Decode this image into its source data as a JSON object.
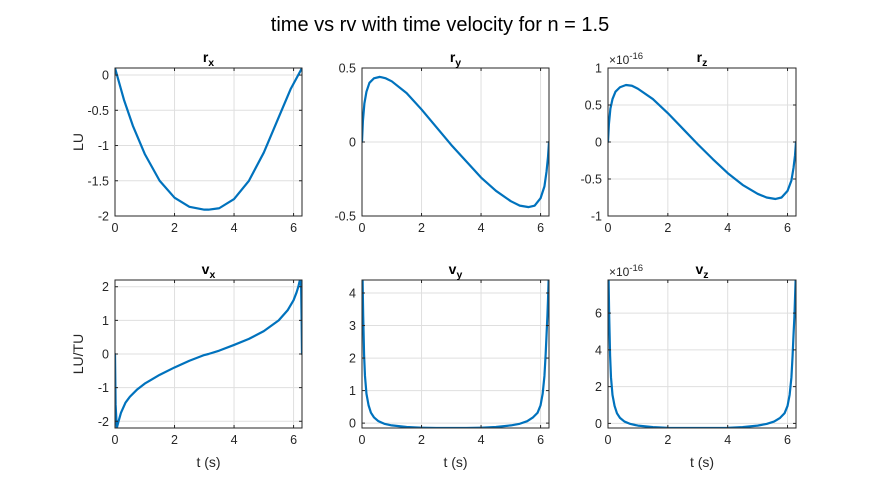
{
  "figure": {
    "title": "time vs rv with time velocity for n = 1.5"
  },
  "chart_data": [
    {
      "type": "line",
      "title": "r",
      "title_sub": "x",
      "ylabel": "LU",
      "xlabel": "",
      "xlim": [
        0,
        6.2832
      ],
      "ylim": [
        -2,
        0.1
      ],
      "xticks": [
        0,
        2,
        4,
        6
      ],
      "xtick_labels": [
        "0",
        "2",
        "4",
        "6"
      ],
      "yticks": [
        0,
        -0.5,
        -1,
        -1.5,
        -2
      ],
      "ytick_labels": [
        "0",
        "-0.5",
        "-1",
        "-1.5",
        "-2"
      ],
      "exponent": "",
      "grid": true,
      "color": "#0072BD",
      "x": [
        0,
        0.3,
        0.6,
        1.0,
        1.5,
        2.0,
        2.5,
        3.0,
        3.14,
        3.5,
        4.0,
        4.5,
        5.0,
        5.5,
        5.9,
        6.2832
      ],
      "y": [
        0.1,
        -0.35,
        -0.72,
        -1.12,
        -1.5,
        -1.74,
        -1.87,
        -1.91,
        -1.91,
        -1.89,
        -1.76,
        -1.5,
        -1.1,
        -0.6,
        -0.2,
        0.1
      ]
    },
    {
      "type": "line",
      "title": "r",
      "title_sub": "y",
      "ylabel": "",
      "xlabel": "",
      "xlim": [
        0,
        6.2832
      ],
      "ylim": [
        -0.5,
        0.5
      ],
      "xticks": [
        0,
        2,
        4,
        6
      ],
      "xtick_labels": [
        "0",
        "2",
        "4",
        "6"
      ],
      "yticks": [
        0.5,
        0,
        -0.5
      ],
      "ytick_labels": [
        "0.5",
        "0",
        "-0.5"
      ],
      "exponent": "",
      "grid": true,
      "color": "#0072BD",
      "x": [
        0,
        0.03,
        0.08,
        0.15,
        0.25,
        0.4,
        0.6,
        0.8,
        1.0,
        1.5,
        2.0,
        2.5,
        3.0,
        3.5,
        4.0,
        4.5,
        5.0,
        5.3,
        5.6,
        5.8,
        6.0,
        6.13,
        6.2,
        6.25,
        6.2832
      ],
      "y": [
        0,
        0.14,
        0.26,
        0.34,
        0.4,
        0.43,
        0.44,
        0.43,
        0.41,
        0.33,
        0.22,
        0.1,
        -0.02,
        -0.13,
        -0.24,
        -0.33,
        -0.4,
        -0.43,
        -0.44,
        -0.43,
        -0.38,
        -0.3,
        -0.2,
        -0.1,
        0
      ]
    },
    {
      "type": "line",
      "title": "r",
      "title_sub": "z",
      "ylabel": "",
      "xlabel": "",
      "xlim": [
        0,
        6.2832
      ],
      "ylim": [
        -1,
        1
      ],
      "xticks": [
        0,
        2,
        4,
        6
      ],
      "xtick_labels": [
        "0",
        "2",
        "4",
        "6"
      ],
      "yticks": [
        1,
        0.5,
        0,
        -0.5,
        -1
      ],
      "ytick_labels": [
        "1",
        "0.5",
        "0",
        "-0.5",
        "-1"
      ],
      "exponent": "-16",
      "grid": true,
      "color": "#0072BD",
      "x": [
        0,
        0.03,
        0.08,
        0.15,
        0.25,
        0.4,
        0.6,
        0.8,
        1.0,
        1.5,
        2.0,
        2.5,
        3.0,
        3.5,
        4.0,
        4.5,
        5.0,
        5.3,
        5.6,
        5.8,
        6.0,
        6.13,
        6.2,
        6.25,
        6.2832
      ],
      "y": [
        0,
        0.24,
        0.45,
        0.58,
        0.68,
        0.74,
        0.77,
        0.76,
        0.72,
        0.58,
        0.39,
        0.18,
        -0.03,
        -0.23,
        -0.42,
        -0.58,
        -0.7,
        -0.75,
        -0.77,
        -0.75,
        -0.66,
        -0.52,
        -0.35,
        -0.18,
        0
      ]
    },
    {
      "type": "line",
      "title": "v",
      "title_sub": "x",
      "ylabel": "LU/TU",
      "xlabel": "t (s)",
      "xlim": [
        0,
        6.2832
      ],
      "ylim": [
        -2.2,
        2.2
      ],
      "xticks": [
        0,
        2,
        4,
        6
      ],
      "xtick_labels": [
        "0",
        "2",
        "4",
        "6"
      ],
      "yticks": [
        2,
        1,
        0,
        -1,
        -2
      ],
      "ytick_labels": [
        "2",
        "1",
        "0",
        "-1",
        "-2"
      ],
      "exponent": "",
      "grid": true,
      "color": "#0072BD",
      "x": [
        0,
        0.02,
        0.06,
        0.12,
        0.2,
        0.35,
        0.5,
        0.75,
        1.0,
        1.5,
        2.0,
        2.5,
        3.0,
        3.14,
        3.5,
        4.0,
        4.5,
        5.0,
        5.5,
        5.8,
        6.0,
        6.1,
        6.16,
        6.2,
        6.23,
        6.25,
        6.27,
        6.2832
      ],
      "y": [
        0,
        -1.5,
        -2.2,
        -2.0,
        -1.75,
        -1.45,
        -1.27,
        -1.05,
        -0.88,
        -0.62,
        -0.4,
        -0.2,
        -0.03,
        0,
        0.1,
        0.27,
        0.45,
        0.68,
        1.0,
        1.3,
        1.6,
        1.83,
        2.0,
        2.15,
        2.25,
        2.2,
        1.0,
        0
      ]
    },
    {
      "type": "line",
      "title": "v",
      "title_sub": "y",
      "ylabel": "",
      "xlabel": "t (s)",
      "xlim": [
        0,
        6.2832
      ],
      "ylim": [
        -0.15,
        4.4
      ],
      "xticks": [
        0,
        2,
        4,
        6
      ],
      "xtick_labels": [
        "0",
        "2",
        "4",
        "6"
      ],
      "yticks": [
        0,
        1,
        2,
        3,
        4
      ],
      "ytick_labels": [
        "0",
        "1",
        "2",
        "3",
        "4"
      ],
      "exponent": "",
      "grid": true,
      "color": "#0072BD",
      "x": [
        0.02,
        0.04,
        0.07,
        0.1,
        0.15,
        0.22,
        0.3,
        0.4,
        0.55,
        0.75,
        1.0,
        1.5,
        2.0,
        2.5,
        3.0,
        3.14,
        3.5,
        4.0,
        4.5,
        5.0,
        5.3,
        5.55,
        5.75,
        5.9,
        6.0,
        6.07,
        6.13,
        6.17,
        6.2,
        6.23,
        6.25,
        6.27
      ],
      "y": [
        4.4,
        3.3,
        2.1,
        1.45,
        0.9,
        0.55,
        0.32,
        0.18,
        0.06,
        -0.02,
        -0.07,
        -0.12,
        -0.14,
        -0.15,
        -0.15,
        -0.15,
        -0.15,
        -0.14,
        -0.12,
        -0.07,
        -0.02,
        0.06,
        0.18,
        0.32,
        0.55,
        0.9,
        1.45,
        2.1,
        2.7,
        3.3,
        3.8,
        4.4
      ]
    },
    {
      "type": "line",
      "title": "v",
      "title_sub": "z",
      "ylabel": "",
      "xlabel": "t (s)",
      "xlim": [
        0,
        6.2832
      ],
      "ylim": [
        -0.25,
        7.8
      ],
      "xticks": [
        0,
        2,
        4,
        6
      ],
      "xtick_labels": [
        "0",
        "2",
        "4",
        "6"
      ],
      "yticks": [
        0,
        2,
        4,
        6
      ],
      "ytick_labels": [
        "0",
        "2",
        "4",
        "6"
      ],
      "exponent": "-16",
      "grid": true,
      "color": "#0072BD",
      "x": [
        0.02,
        0.04,
        0.07,
        0.1,
        0.15,
        0.22,
        0.3,
        0.4,
        0.55,
        0.75,
        1.0,
        1.5,
        2.0,
        2.5,
        3.0,
        3.14,
        3.5,
        4.0,
        4.5,
        5.0,
        5.3,
        5.55,
        5.75,
        5.9,
        6.0,
        6.07,
        6.13,
        6.17,
        6.2,
        6.23,
        6.25,
        6.27
      ],
      "y": [
        7.8,
        5.8,
        3.7,
        2.5,
        1.55,
        0.95,
        0.55,
        0.3,
        0.1,
        -0.03,
        -0.12,
        -0.2,
        -0.24,
        -0.25,
        -0.25,
        -0.25,
        -0.25,
        -0.24,
        -0.2,
        -0.12,
        -0.03,
        0.1,
        0.3,
        0.55,
        0.95,
        1.55,
        2.5,
        3.7,
        4.8,
        5.8,
        6.8,
        7.8
      ]
    }
  ]
}
